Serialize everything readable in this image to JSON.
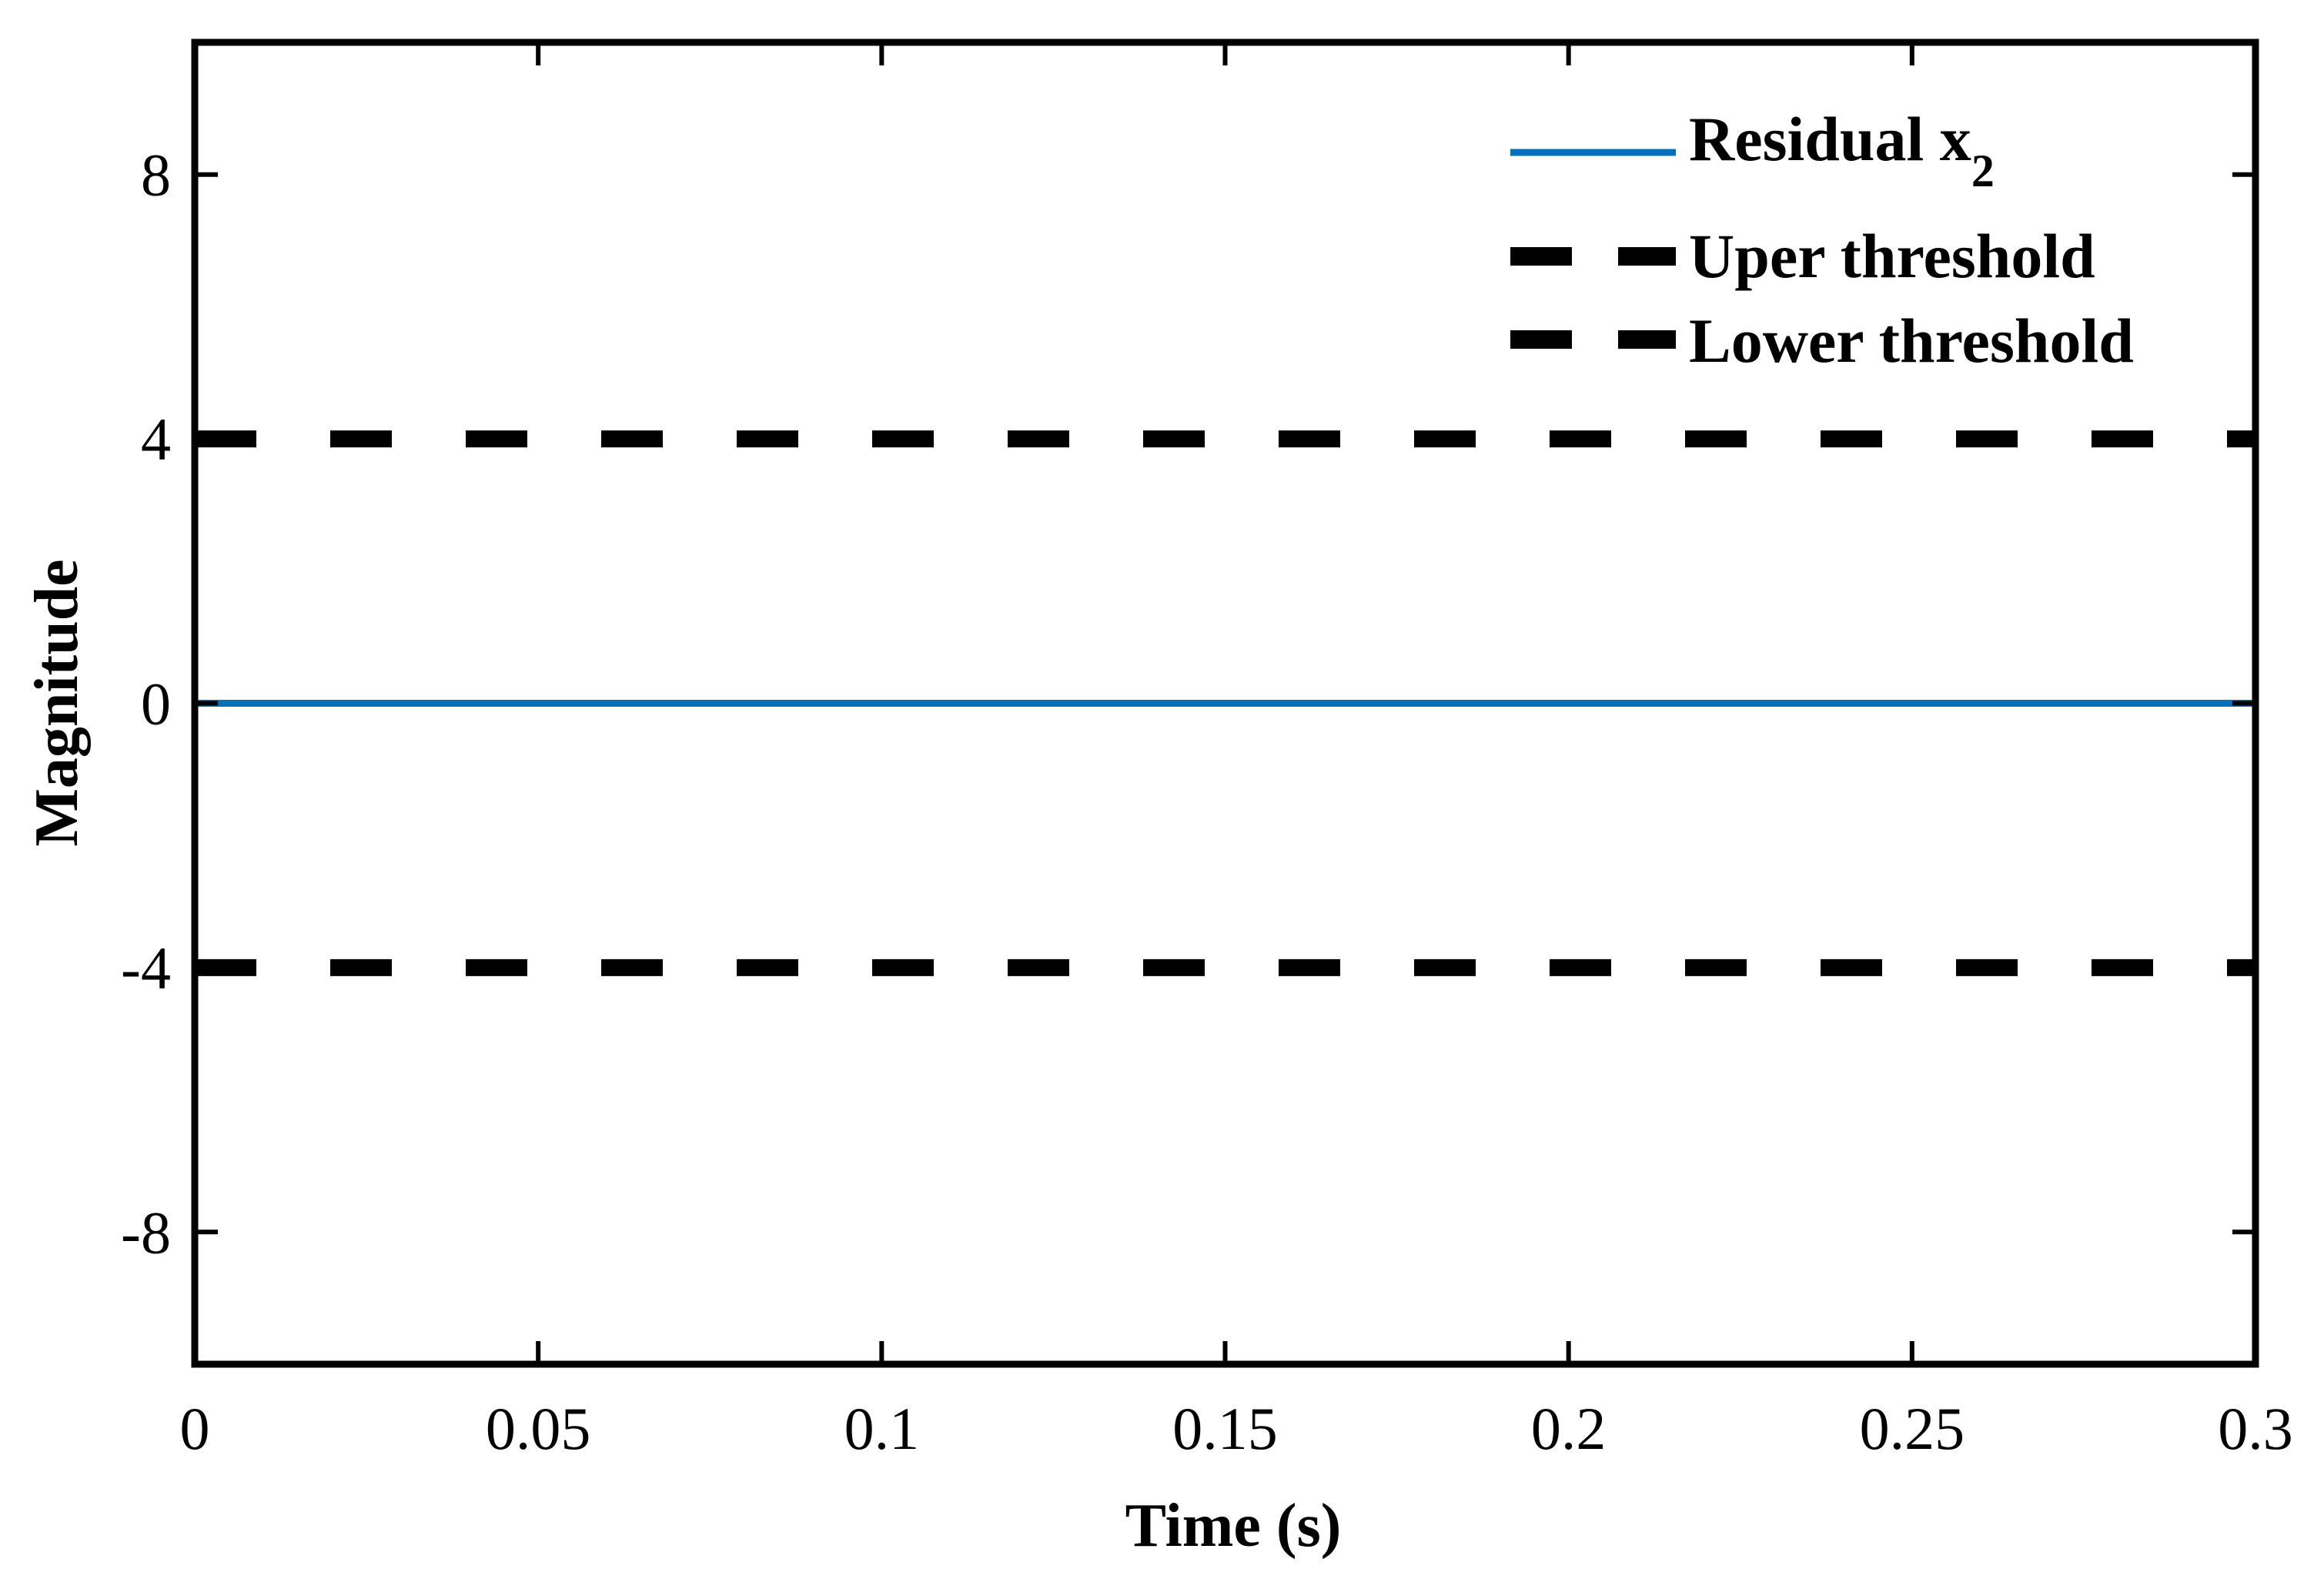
{
  "chart_data": {
    "type": "line",
    "title": "",
    "xlabel": "Time (s)",
    "ylabel": "Magnitude",
    "xlim": [
      0,
      0.3
    ],
    "ylim": [
      -10,
      10
    ],
    "xticks": [
      0,
      0.05,
      0.1,
      0.15,
      0.2,
      0.25,
      0.3
    ],
    "xtick_labels": [
      "0",
      "0.05",
      "0.1",
      "0.15",
      "0.2",
      "0.25",
      "0.3"
    ],
    "yticks": [
      -8,
      -4,
      0,
      4,
      8
    ],
    "ytick_labels": [
      "-8",
      "-4",
      "0",
      "4",
      "8"
    ],
    "grid": false,
    "legend_position": "top-right",
    "series": [
      {
        "name": "Residual x",
        "name_subscript": "2",
        "style": "solid",
        "color": "#0072BD",
        "x": [
          0,
          0.3
        ],
        "y": [
          0,
          0
        ]
      },
      {
        "name": "Uper threshold",
        "style": "dashed",
        "color": "#000000",
        "x": [
          0,
          0.3
        ],
        "y": [
          4,
          4
        ]
      },
      {
        "name": "Lower threshold",
        "style": "dashed",
        "color": "#000000",
        "x": [
          0,
          0.3
        ],
        "y": [
          -4,
          -4
        ]
      }
    ]
  }
}
